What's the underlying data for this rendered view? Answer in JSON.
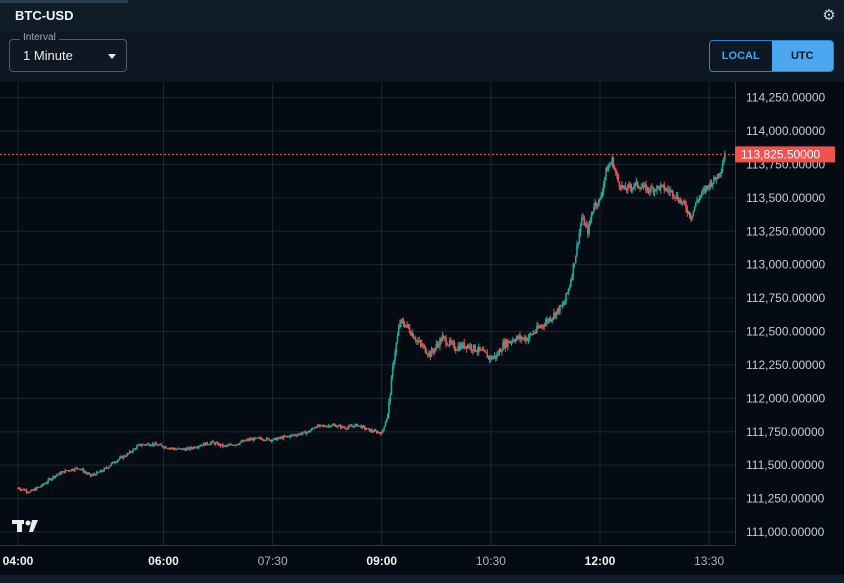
{
  "header": {
    "title": "BTC-USD",
    "settings_icon": "gear-icon"
  },
  "toolbar": {
    "interval": {
      "label": "Interval",
      "value": "1 Minute"
    },
    "timezone_toggle": {
      "local_label": "LOCAL",
      "utc_label": "UTC",
      "selected": "UTC"
    }
  },
  "colors": {
    "up": "#26a69a",
    "down": "#ef5350",
    "price_line": "#ef5350",
    "accent": "#4ba8f0"
  },
  "chart_data": {
    "type": "candlestick",
    "symbol": "BTC-USD",
    "interval": "1 Minute",
    "x_ticks": [
      {
        "t": "04:00",
        "bold": true
      },
      {
        "t": "06:00",
        "bold": true
      },
      {
        "t": "07:30",
        "bold": false
      },
      {
        "t": "09:00",
        "bold": true
      },
      {
        "t": "10:30",
        "bold": false
      },
      {
        "t": "12:00",
        "bold": true
      },
      {
        "t": "13:30",
        "bold": false
      }
    ],
    "y_ticks": [
      "114,250.00000",
      "114,000.00000",
      "113,750.00000",
      "113,500.00000",
      "113,250.00000",
      "113,000.00000",
      "112,750.00000",
      "112,500.00000",
      "112,250.00000",
      "112,000.00000",
      "111,750.00000",
      "111,500.00000",
      "111,250.00000",
      "111,000.00000"
    ],
    "y_tick_values": [
      114250,
      114000,
      113750,
      113500,
      113250,
      113000,
      112750,
      112500,
      112250,
      112000,
      111750,
      111500,
      111250,
      111000
    ],
    "ylim": [
      110900,
      114350
    ],
    "last_price": 113825.5,
    "last_price_label": "113,825.50000",
    "price_path": [
      [
        "04:00",
        111330
      ],
      [
        "04:10",
        111300
      ],
      [
        "04:20",
        111350
      ],
      [
        "04:30",
        111420
      ],
      [
        "04:40",
        111460
      ],
      [
        "04:50",
        111480
      ],
      [
        "05:00",
        111420
      ],
      [
        "05:10",
        111460
      ],
      [
        "05:20",
        111530
      ],
      [
        "05:30",
        111580
      ],
      [
        "05:40",
        111650
      ],
      [
        "05:50",
        111660
      ],
      [
        "06:00",
        111640
      ],
      [
        "06:10",
        111620
      ],
      [
        "06:20",
        111620
      ],
      [
        "06:30",
        111650
      ],
      [
        "06:40",
        111670
      ],
      [
        "06:50",
        111640
      ],
      [
        "07:00",
        111660
      ],
      [
        "07:10",
        111690
      ],
      [
        "07:20",
        111700
      ],
      [
        "07:30",
        111690
      ],
      [
        "07:40",
        111710
      ],
      [
        "07:50",
        111730
      ],
      [
        "08:00",
        111750
      ],
      [
        "08:05",
        111790
      ],
      [
        "08:10",
        111790
      ],
      [
        "08:20",
        111800
      ],
      [
        "08:30",
        111780
      ],
      [
        "08:40",
        111800
      ],
      [
        "08:50",
        111760
      ],
      [
        "09:00",
        111740
      ],
      [
        "09:05",
        111880
      ],
      [
        "09:10",
        112300
      ],
      [
        "09:15",
        112570
      ],
      [
        "09:20",
        112550
      ],
      [
        "09:30",
        112420
      ],
      [
        "09:40",
        112330
      ],
      [
        "09:50",
        112450
      ],
      [
        "10:00",
        112380
      ],
      [
        "10:10",
        112400
      ],
      [
        "10:20",
        112360
      ],
      [
        "10:25",
        112330
      ],
      [
        "10:30",
        112300
      ],
      [
        "10:35",
        112320
      ],
      [
        "10:40",
        112400
      ],
      [
        "10:50",
        112450
      ],
      [
        "11:00",
        112450
      ],
      [
        "11:10",
        112530
      ],
      [
        "11:20",
        112610
      ],
      [
        "11:30",
        112700
      ],
      [
        "11:35",
        112850
      ],
      [
        "11:40",
        113080
      ],
      [
        "11:45",
        113350
      ],
      [
        "11:50",
        113250
      ],
      [
        "11:55",
        113450
      ],
      [
        "12:00",
        113480
      ],
      [
        "12:05",
        113700
      ],
      [
        "12:10",
        113780
      ],
      [
        "12:15",
        113620
      ],
      [
        "12:20",
        113560
      ],
      [
        "12:30",
        113600
      ],
      [
        "12:40",
        113560
      ],
      [
        "12:50",
        113580
      ],
      [
        "13:00",
        113540
      ],
      [
        "13:10",
        113440
      ],
      [
        "13:15",
        113360
      ],
      [
        "13:20",
        113480
      ],
      [
        "13:30",
        113600
      ],
      [
        "13:35",
        113640
      ],
      [
        "13:40",
        113720
      ],
      [
        "13:43",
        113840
      ]
    ]
  }
}
